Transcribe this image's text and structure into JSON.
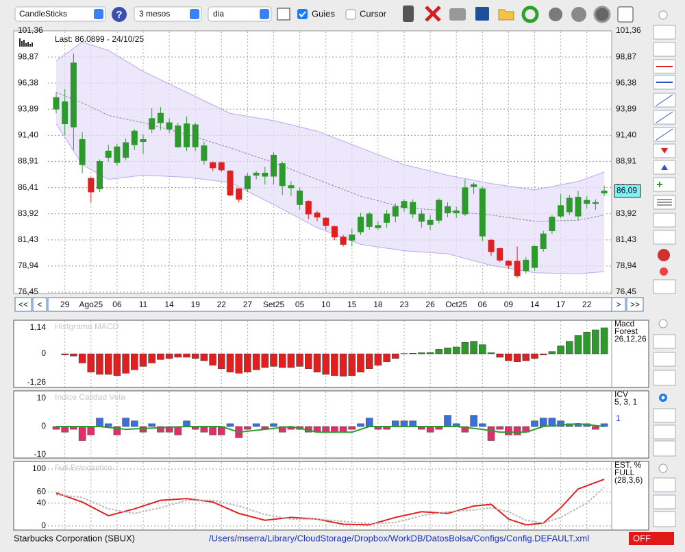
{
  "toolbar": {
    "chart_type": "CandleSticks",
    "period": "3 mesos",
    "interval": "dia",
    "guides": "Guies",
    "cursor": "Cursor"
  },
  "nav": {
    "first": "<<",
    "prev": "<",
    "next": ">",
    "last": ">>"
  },
  "status": {
    "company": "Starbucks Corporation (SBUX)",
    "path": "/Users/mserra/Library/CloudStorage/Dropbox/WorkDB/DatosBolsa/Configs/Config.DEFAULT.xml",
    "state": "OFF"
  },
  "chart_data": [
    {
      "type": "candlestick",
      "title": "Last: 86.0899 - 24/10/25",
      "categories": [
        null,
        "29",
        null,
        null,
        "Ago25",
        null,
        null,
        "06",
        null,
        null,
        "11",
        null,
        null,
        "14",
        null,
        null,
        "19",
        null,
        null,
        "22",
        null,
        null,
        "27",
        null,
        null,
        "Set25",
        null,
        null,
        "05",
        null,
        null,
        "10",
        null,
        null,
        "15",
        null,
        null,
        "18",
        null,
        null,
        "23",
        null,
        null,
        "26",
        null,
        null,
        "Oct25",
        null,
        null,
        "06",
        null,
        null,
        "09",
        null,
        null,
        "14",
        null,
        null,
        "17",
        null,
        null,
        "22",
        null,
        null
      ],
      "open": [
        93.9,
        92.5,
        92.2,
        88.6,
        87.3,
        86.3,
        89.3,
        88.8,
        89.3,
        90.5,
        90.8,
        92.0,
        92.6,
        92.0,
        90.3,
        90.3,
        90.3,
        89.0,
        88.8,
        88.8,
        88.0,
        86.3,
        86.3,
        87.6,
        87.5,
        87.5,
        86.6,
        86.4,
        84.8,
        85.1,
        84.0,
        83.5,
        82.7,
        81.7,
        81.4,
        82.2,
        82.7,
        82.6,
        83.1,
        83.7,
        84.5,
        83.9,
        83.2,
        82.9,
        83.3,
        84.0,
        84.0,
        83.9,
        86.5,
        81.8,
        81.4,
        80.6,
        79.4,
        79.4,
        78.5,
        78.8,
        80.6,
        82.3,
        83.7,
        84.1,
        83.7,
        84.9,
        84.9,
        85.9
      ],
      "high": [
        95.5,
        95.8,
        99.2,
        91.7,
        87.4,
        89.1,
        90.5,
        90.6,
        91.1,
        92.0,
        91.5,
        94.0,
        94.1,
        93.0,
        92.6,
        93.2,
        92.6,
        90.8,
        88.9,
        88.9,
        88.1,
        86.4,
        87.8,
        88.0,
        88.4,
        89.8,
        88.9,
        87.0,
        86.4,
        85.2,
        84.2,
        83.6,
        82.8,
        81.9,
        82.5,
        84.0,
        84.1,
        83.2,
        84.3,
        84.9,
        85.3,
        85.3,
        84.3,
        83.8,
        85.4,
        85.0,
        84.6,
        87.2,
        86.9,
        86.5,
        81.5,
        80.7,
        79.5,
        80.8,
        79.8,
        80.9,
        82.3,
        83.8,
        85.8,
        85.7,
        86.1,
        85.6,
        85.3,
        86.6
      ],
      "low": [
        93.5,
        91.4,
        90.0,
        87.8,
        85.0,
        86.0,
        88.9,
        88.5,
        89.0,
        90.0,
        89.6,
        91.6,
        91.9,
        91.6,
        90.2,
        89.9,
        89.9,
        88.6,
        88.0,
        87.9,
        85.6,
        85.0,
        86.0,
        87.2,
        86.7,
        86.7,
        85.7,
        85.6,
        84.3,
        83.4,
        83.2,
        82.4,
        81.4,
        80.8,
        80.8,
        81.9,
        82.4,
        82.4,
        82.6,
        83.1,
        84.1,
        83.5,
        82.6,
        82.4,
        83.0,
        83.6,
        83.5,
        83.7,
        85.8,
        81.3,
        79.9,
        79.3,
        78.7,
        77.8,
        78.2,
        78.5,
        80.3,
        82.0,
        83.5,
        83.8,
        83.3,
        84.4,
        84.3,
        85.6
      ],
      "close": [
        95.0,
        94.6,
        98.3,
        91.0,
        86.0,
        88.9,
        89.9,
        90.3,
        90.7,
        91.8,
        91.0,
        93.0,
        93.5,
        92.6,
        92.3,
        92.5,
        92.4,
        90.4,
        88.3,
        88.1,
        85.7,
        85.3,
        87.5,
        87.8,
        87.8,
        89.5,
        88.7,
        86.6,
        86.1,
        83.9,
        83.6,
        82.8,
        81.7,
        81.0,
        81.9,
        83.6,
        83.9,
        82.8,
        83.9,
        84.6,
        85.1,
        85.0,
        83.9,
        83.3,
        85.2,
        84.6,
        84.2,
        86.4,
        86.7,
        86.3,
        80.3,
        79.5,
        79.0,
        78.0,
        79.5,
        80.8,
        82.0,
        83.6,
        84.7,
        85.4,
        85.5,
        85.2,
        85.0,
        86.0899
      ],
      "up_color": "#2e9a2e",
      "down_color": "#e02020",
      "series": [
        {
          "color": "#b9a9ec",
          "x": [
            0,
            3,
            6,
            10,
            15,
            20,
            25,
            30,
            35,
            40,
            45,
            50,
            55,
            60,
            63
          ],
          "values": [
            98.5,
            100.3,
            99.5,
            97.5,
            95.5,
            93.5,
            92.8,
            91.8,
            90.2,
            88.6,
            87.6,
            86.8,
            86.2,
            87.0,
            87.9
          ]
        },
        {
          "color": "#8a8a9a",
          "x": [
            0,
            3,
            6,
            10,
            15,
            20,
            25,
            30,
            35,
            40,
            45,
            50,
            55,
            60,
            63
          ],
          "values": [
            95.5,
            94.5,
            93.3,
            92.6,
            91.5,
            90.2,
            88.8,
            87.2,
            85.6,
            84.5,
            84.2,
            83.8,
            83.2,
            83.3,
            83.8
          ]
        },
        {
          "color": "#b9a9ec",
          "x": [
            0,
            3,
            6,
            10,
            15,
            20,
            25,
            30,
            35,
            40,
            45,
            50,
            55,
            60,
            63
          ],
          "values": [
            92.5,
            88.6,
            87.2,
            87.6,
            87.4,
            86.9,
            84.8,
            82.6,
            81.0,
            80.4,
            80.1,
            79.0,
            78.3,
            78.2,
            78.4
          ]
        }
      ],
      "band_fill": "#e4ddfa",
      "last_price": {
        "value": 86.09,
        "label": "86,09"
      },
      "ylim": [
        76.45,
        101.36
      ],
      "yticks": [
        {
          "value": 76.45,
          "label": "76,45"
        },
        {
          "value": 78.94,
          "label": "78,94"
        },
        {
          "value": 81.43,
          "label": "81,43"
        },
        {
          "value": 83.92,
          "label": "83,92"
        },
        {
          "value": 86.41,
          "label": "86,41"
        },
        {
          "value": 88.91,
          "label": "88,91"
        },
        {
          "value": 91.4,
          "label": "91,40"
        },
        {
          "value": 93.89,
          "label": "93,89"
        },
        {
          "value": 96.38,
          "label": "96,38"
        },
        {
          "value": 98.87,
          "label": "98,87"
        },
        {
          "value": 101.36,
          "label": "101,36"
        }
      ],
      "grid": true
    },
    {
      "type": "bar",
      "title": "Histgrama MACD",
      "label_lines": [
        "Macd",
        "Forest",
        "26,12,26"
      ],
      "values": [
        null,
        -0.05,
        -0.1,
        -0.4,
        -0.8,
        -0.9,
        -0.9,
        -0.95,
        -0.85,
        -0.7,
        -0.55,
        -0.4,
        -0.25,
        -0.2,
        -0.15,
        -0.15,
        -0.2,
        -0.3,
        -0.5,
        -0.65,
        -0.8,
        -0.85,
        -0.8,
        -0.7,
        -0.6,
        -0.55,
        -0.6,
        -0.6,
        -0.55,
        -0.65,
        -0.8,
        -0.9,
        -0.95,
        -0.98,
        -0.95,
        -0.8,
        -0.65,
        -0.5,
        -0.35,
        -0.2,
        0.01,
        0.02,
        0.05,
        0.06,
        0.2,
        0.26,
        0.3,
        0.5,
        0.55,
        0.4,
        0.05,
        -0.15,
        -0.3,
        -0.35,
        -0.3,
        -0.2,
        -0.05,
        0.1,
        0.35,
        0.55,
        0.8,
        0.95,
        1.05,
        1.14
      ],
      "up_color": "#2e9a2e",
      "down_color": "#e02020",
      "ylim": [
        -1.26,
        1.14
      ],
      "yticks": [
        {
          "value": 1.14,
          "label": "1,14"
        },
        0,
        {
          "value": -1.26,
          "label": "-1,26"
        }
      ],
      "grid": false
    },
    {
      "type": "bar",
      "title": "Indice Calidad Vela",
      "label_lines": [
        "ICV",
        "5, 3, 1"
      ],
      "signal_label": "1",
      "values": [
        -1,
        -2,
        -1,
        -5,
        -3,
        3,
        1,
        -3,
        3,
        2,
        -2,
        1,
        -2,
        -2,
        -3,
        2,
        -1,
        -2,
        -3,
        -3,
        1,
        -4,
        -1,
        1,
        -1,
        1,
        -2,
        -1,
        -1,
        -2,
        -2,
        -2,
        -2,
        -2,
        -1,
        1,
        3,
        -1,
        -1,
        2,
        2,
        2,
        -1,
        -2,
        -1,
        4,
        1,
        -2,
        4,
        1,
        -5,
        -1,
        -3,
        -3,
        -2,
        2,
        3,
        3,
        2,
        1,
        1,
        1,
        -1,
        1
      ],
      "up_color": "#3a6fe0",
      "down_color": "#e0306a",
      "series": [
        {
          "color": "#2e9a2e",
          "x": [
            0,
            5,
            8,
            15,
            19,
            21,
            24,
            27,
            30,
            34,
            36,
            46,
            49,
            51,
            54,
            56,
            60,
            63
          ],
          "values": [
            0,
            0,
            -1,
            0,
            0,
            -2,
            -1,
            0,
            -2,
            -2,
            0,
            0,
            -1,
            -2,
            -2,
            0,
            1,
            0
          ]
        }
      ],
      "ylim": [
        -10,
        10
      ],
      "yticks": [
        10,
        0,
        -10
      ],
      "grid": false
    },
    {
      "type": "line",
      "title": "Full Estocastico",
      "label_lines": [
        "EST. %",
        "FULL",
        "(28,3,6)"
      ],
      "series": [
        {
          "color": "#e02020",
          "x": [
            0,
            3,
            6,
            9,
            12,
            15,
            18,
            21,
            24,
            27,
            30,
            33,
            36,
            39,
            42,
            45,
            48,
            50,
            52,
            54,
            56,
            58,
            60,
            63
          ],
          "values": [
            58,
            42,
            18,
            30,
            45,
            48,
            42,
            22,
            10,
            15,
            12,
            3,
            2,
            15,
            25,
            22,
            35,
            38,
            12,
            2,
            5,
            32,
            65,
            82
          ]
        },
        {
          "color": "#b8b8b8",
          "dashed": true,
          "x": [
            0,
            3,
            6,
            9,
            12,
            15,
            18,
            21,
            24,
            27,
            30,
            33,
            36,
            39,
            42,
            45,
            48,
            50,
            52,
            54,
            56,
            58,
            61,
            63
          ],
          "values": [
            55,
            50,
            30,
            22,
            32,
            45,
            45,
            35,
            20,
            12,
            12,
            8,
            4,
            6,
            18,
            25,
            28,
            32,
            25,
            10,
            5,
            15,
            40,
            68
          ]
        }
      ],
      "ylim": [
        0,
        100
      ],
      "yticks": [
        100,
        60,
        40,
        0
      ],
      "grid": true
    }
  ]
}
